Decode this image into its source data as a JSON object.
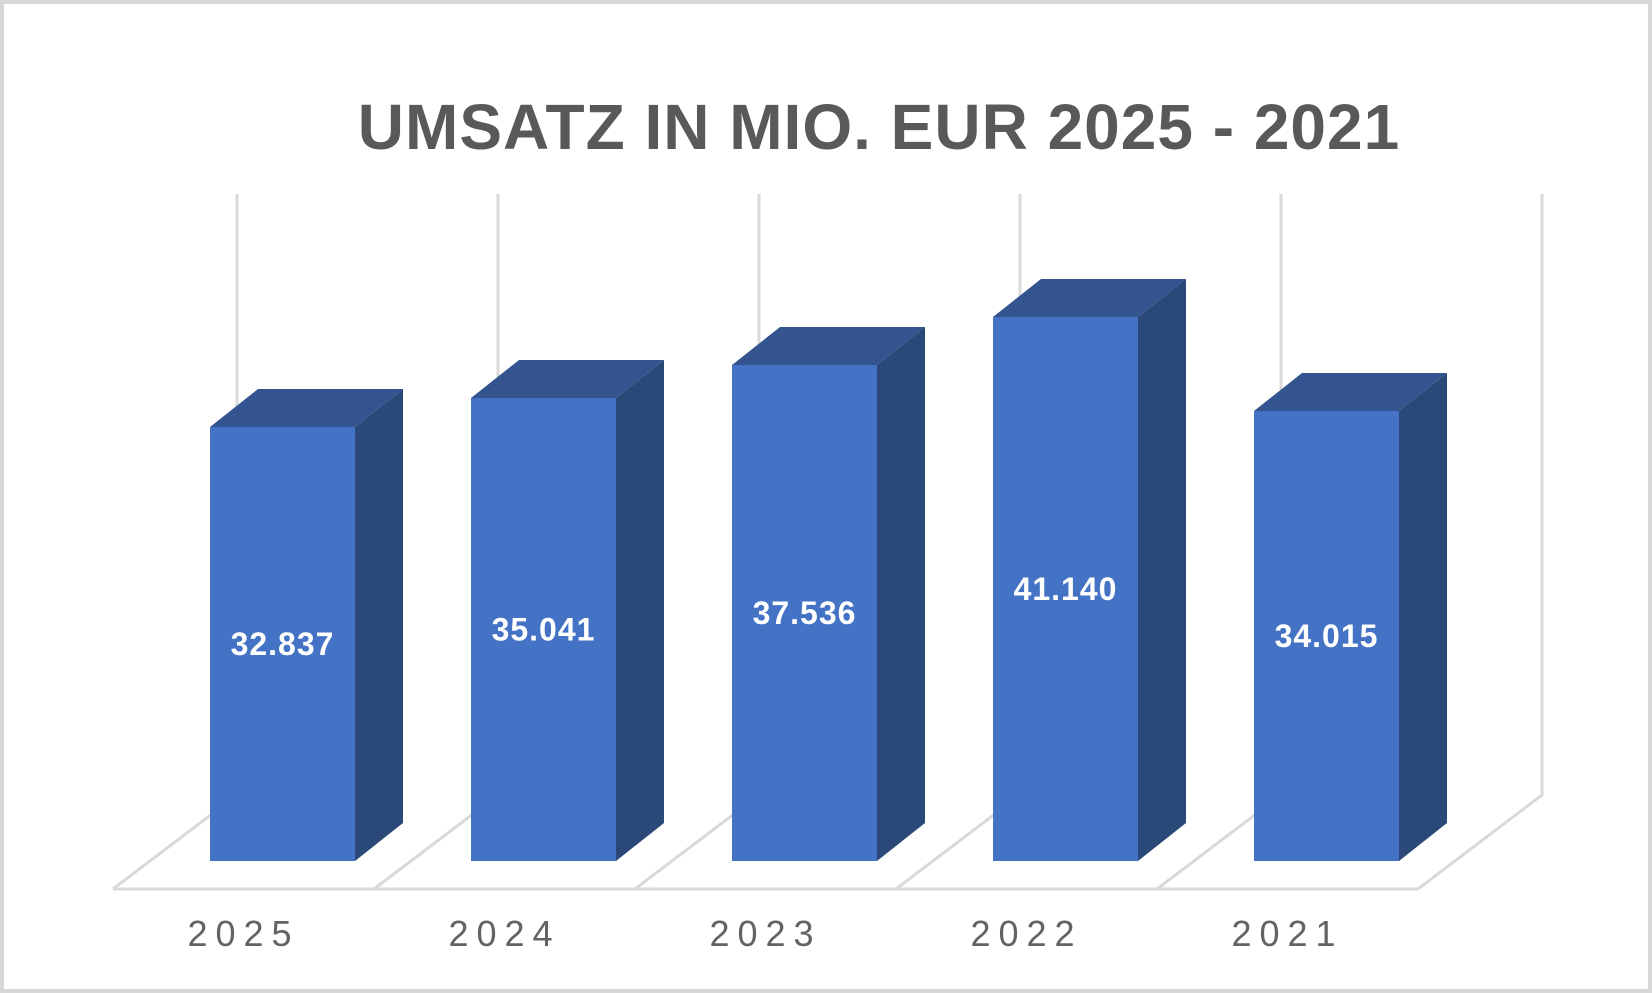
{
  "title": "UMSATZ IN MIO. EUR 2025 - 2021",
  "chart_data": {
    "type": "bar",
    "subtype": "3d-column",
    "title": "UMSATZ IN MIO. EUR 2025 - 2021",
    "categories": [
      "2025",
      "2024",
      "2023",
      "2022",
      "2021"
    ],
    "series": [
      {
        "name": "Umsatz in Mio. EUR",
        "values": [
          32837,
          35041,
          37536,
          41140,
          34015
        ],
        "data_labels": [
          "32.837",
          "35.041",
          "37.536",
          "41.140",
          "34.015"
        ]
      }
    ],
    "xlabel": "",
    "ylabel": "",
    "value_axis_visible": false,
    "legend_position": "none",
    "grid": "back-wall vertical category gridlines with 3D floor",
    "ylim": [
      0,
      45000
    ]
  },
  "colors": {
    "bar_front": "#4472c4",
    "bar_top": "#33548e",
    "bar_side": "#2a4878",
    "gridline": "#d9d9d9",
    "title_text": "#595959",
    "axis_text": "#636363",
    "value_label_text": "#ffffff",
    "background": "#ffffff",
    "border": "#d7d7d7"
  }
}
